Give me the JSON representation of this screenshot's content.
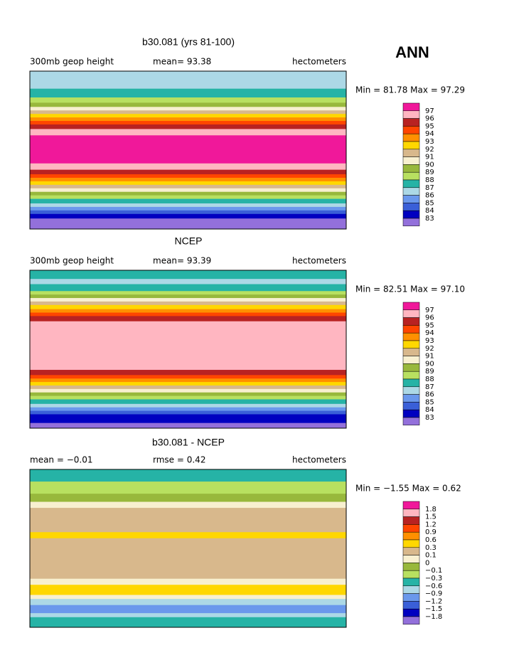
{
  "season": "ANN",
  "panels": [
    {
      "title": "b30.081 (yrs 81-100)",
      "left": "300mb geop height",
      "center": "mean=  93.38",
      "right": "hectometers",
      "minmax": "Min =  81.78 Max =  97.29",
      "levels": [
        "97",
        "96",
        "95",
        "94",
        "93",
        "92",
        "91",
        "90",
        "89",
        "88",
        "87",
        "86",
        "85",
        "84",
        "83"
      ]
    },
    {
      "title": "NCEP",
      "left": "300mb geop height",
      "center": "mean=  93.39",
      "right": "hectometers",
      "minmax": "Min =  82.51 Max =  97.10",
      "levels": [
        "97",
        "96",
        "95",
        "94",
        "93",
        "92",
        "91",
        "90",
        "89",
        "88",
        "87",
        "86",
        "85",
        "84",
        "83"
      ]
    },
    {
      "title": "b30.081 - NCEP",
      "left": "mean =  −0.01",
      "center": "rmse =    0.42",
      "right": "hectometers",
      "minmax": "Min =  −1.55 Max =    0.62",
      "levels": [
        "1.8",
        "1.5",
        "1.2",
        "0.9",
        "0.6",
        "0.3",
        "0.1",
        "0",
        "−0.1",
        "−0.3",
        "−0.6",
        "−0.9",
        "−1.2",
        "−1.5",
        "−1.8"
      ]
    }
  ],
  "colors": [
    "#f0189a",
    "#ffb6c1",
    "#b82222",
    "#ff4500",
    "#ff9000",
    "#ffd700",
    "#d8b88c",
    "#f8f0d0",
    "#98b83c",
    "#b8e060",
    "#26b3a6",
    "#acd8e6",
    "#6a98ec",
    "#3a5fd8",
    "#0000c0",
    "#9370db"
  ]
}
